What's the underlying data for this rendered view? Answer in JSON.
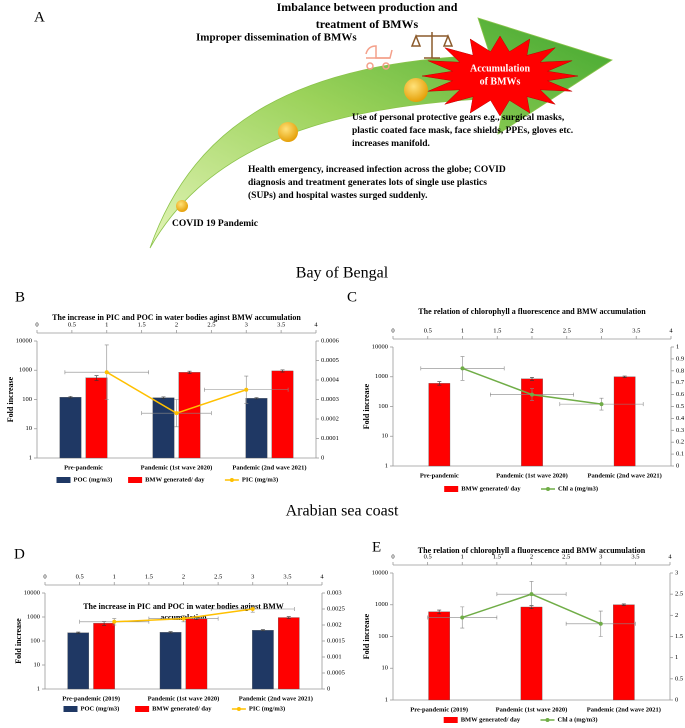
{
  "panel_a": {
    "label": "A",
    "texts": [
      {
        "lines": [
          "Imbalance between production and",
          "treatment of BMWs"
        ]
      },
      {
        "lines": [
          "Improper dissemination of BMWs"
        ]
      },
      {
        "lines": [
          "Accumulation",
          "of BMWs"
        ]
      },
      {
        "lines": [
          "Use of personal protective gears e.g., surgical masks,",
          "plastic coated face mask, face shields, PPEs, gloves etc.",
          "increases manifold."
        ]
      },
      {
        "lines": [
          "Health emergency, increased infection across the globe; COVID",
          "diagnosis  and treatment generates lots of single use plastics",
          "(SUPs) and hospital wastes surged suddenly."
        ]
      },
      {
        "lines": [
          "COVID 19 Pandemic"
        ]
      }
    ]
  },
  "regions": [
    "Bay of Bengal",
    "Arabian sea coast"
  ],
  "chart_data": [
    {
      "type": "bar",
      "panel": "B",
      "title": "The increase in PIC and POC in water bodies aginst BMW accumulation",
      "ylabel": "Fold increase",
      "log_y": true,
      "categories": [
        "Pre-pandemic",
        "Pandemic (1st wave 2020)",
        "Pandemic (2nd wave 2021)"
      ],
      "ylim": [
        1,
        10000
      ],
      "yticks": [
        1,
        10,
        100,
        1000,
        10000
      ],
      "xlim": [
        0,
        4
      ],
      "xticks": [
        0,
        0.5,
        1,
        1.5,
        2,
        2.5,
        3,
        3.5,
        4
      ],
      "y2lim": [
        0,
        0.0006
      ],
      "y2ticks": [
        0,
        0.0001,
        0.0002,
        0.0003,
        0.0004,
        0.0005,
        0.0006
      ],
      "series": [
        {
          "name": "POC (mg/m3)",
          "color": "#1f3864",
          "values": [
            120,
            115,
            110
          ],
          "errors": [
            8,
            8,
            6
          ]
        },
        {
          "name": "BMW generated/ day",
          "color": "#ff0000",
          "values": [
            550,
            850,
            950
          ],
          "errors": [
            100,
            80,
            80
          ]
        },
        {
          "name": "PIC (mg/m3)",
          "color": "#ffc000",
          "axis": "y2",
          "x": [
            1,
            2,
            3
          ],
          "values": [
            0.00044,
            0.00023,
            0.00035
          ],
          "errors": [
            0.00014,
            7e-05,
            7e-05
          ],
          "x_errors": [
            0.6,
            0.5,
            0.6
          ]
        }
      ]
    },
    {
      "type": "bar",
      "panel": "C",
      "title": "The relation of chlorophyll  a fluorescence and BMW accumulation",
      "ylabel": "Fold increase",
      "log_y": true,
      "categories": [
        "Pre-pandemic",
        "Pandemic (1st wave 2020)",
        "Pandemic (2nd wave 2021)"
      ],
      "ylim": [
        1,
        10000
      ],
      "yticks": [
        1,
        10,
        100,
        1000,
        10000
      ],
      "xlim": [
        0,
        4
      ],
      "xticks": [
        0,
        0.5,
        1,
        1.5,
        2,
        2.5,
        3,
        3.5,
        4
      ],
      "y2lim": [
        0,
        1
      ],
      "y2ticks": [
        0,
        0.1,
        0.2,
        0.3,
        0.4,
        0.5,
        0.6,
        0.7,
        0.8,
        0.9,
        1
      ],
      "series": [
        {
          "name": "BMW generated/ day",
          "color": "#ff0000",
          "values": [
            600,
            850,
            1000
          ],
          "errors": [
            80,
            100,
            60
          ]
        },
        {
          "name": "Chl a (mg/m3)",
          "color": "#70ad47",
          "axis": "y2",
          "x": [
            1,
            2,
            3
          ],
          "values": [
            0.82,
            0.6,
            0.52
          ],
          "errors": [
            0.1,
            0.05,
            0.05
          ],
          "x_errors": [
            0.6,
            0.6,
            0.6
          ]
        }
      ]
    },
    {
      "type": "bar",
      "panel": "D",
      "title": [
        "The increase in PIC and POC in water bodies aginst BMW",
        "accumulation"
      ],
      "ylabel": "Fold increase",
      "log_y": true,
      "categories": [
        "Pre-pandemic (2019)",
        "Pandemic (1st wave 2020)",
        "Pandemic (2nd wave 2021)"
      ],
      "ylim": [
        1,
        10000
      ],
      "yticks": [
        1,
        10,
        100,
        1000,
        10000
      ],
      "xlim": [
        0,
        4
      ],
      "xticks": [
        0,
        0.5,
        1,
        1.5,
        2,
        2.5,
        3,
        3.5,
        4
      ],
      "y2lim": [
        0,
        0.003
      ],
      "y2ticks": [
        0,
        0.0005,
        0.001,
        0.0015,
        0.002,
        0.0025,
        0.003
      ],
      "series": [
        {
          "name": "POC (mg/m3)",
          "color": "#1f3864",
          "values": [
            220,
            230,
            280
          ],
          "errors": [
            15,
            15,
            15
          ]
        },
        {
          "name": "BMW generated/ day",
          "color": "#ff0000",
          "values": [
            550,
            850,
            950
          ],
          "errors": [
            100,
            80,
            80
          ]
        },
        {
          "name": "PIC (mg/m3)",
          "color": "#ffc000",
          "axis": "y2",
          "x": [
            1,
            2,
            3
          ],
          "values": [
            0.0021,
            0.0022,
            0.0025
          ],
          "errors": [
            0.0001,
            0.0001,
            0.0001
          ],
          "x_errors": [
            0.5,
            0.5,
            0.6
          ]
        }
      ]
    },
    {
      "type": "bar",
      "panel": "E",
      "title": "The relation of chlorophyll  a fluorescence and BMW accumulation",
      "ylabel": "Fold increase",
      "log_y": true,
      "categories": [
        "Pre-pandemic (2019)",
        "Pandemic (1st wave 2020)",
        "Pandemic (2nd wave 2021)"
      ],
      "ylim": [
        1,
        10000
      ],
      "yticks": [
        1,
        10,
        100,
        1000,
        10000
      ],
      "xlim": [
        0,
        4
      ],
      "xticks": [
        0,
        0.5,
        1,
        1.5,
        2,
        2.5,
        3,
        3.5,
        4
      ],
      "y2lim": [
        0,
        3
      ],
      "y2ticks": [
        0,
        0.5,
        1,
        1.5,
        2,
        2.5,
        3
      ],
      "series": [
        {
          "name": "BMW generated/ day",
          "color": "#ff0000",
          "values": [
            600,
            850,
            1000
          ],
          "errors": [
            80,
            100,
            60
          ]
        },
        {
          "name": "Chl a (mg/m3)",
          "color": "#70ad47",
          "axis": "y2",
          "x": [
            1,
            2,
            3
          ],
          "values": [
            1.95,
            2.5,
            1.8
          ],
          "errors": [
            0.25,
            0.3,
            0.3
          ],
          "x_errors": [
            0.5,
            0.5,
            0.5
          ]
        }
      ]
    }
  ]
}
